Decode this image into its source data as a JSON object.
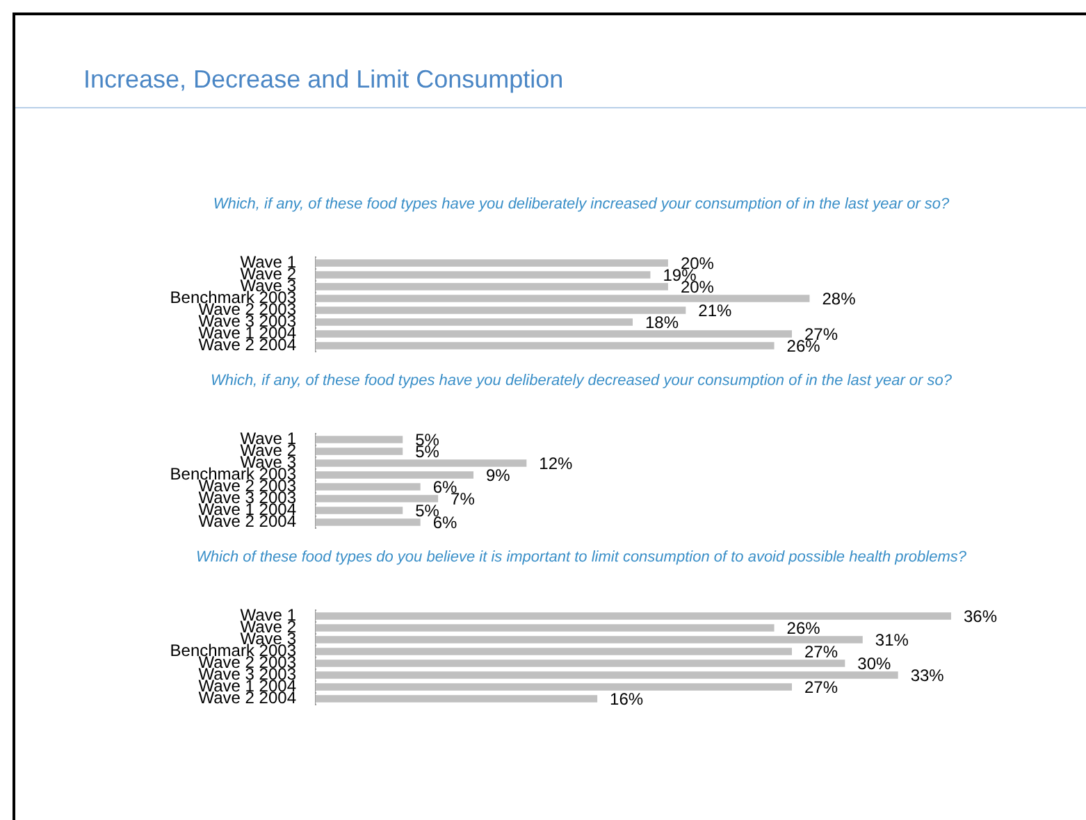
{
  "chart_data": [
    {
      "type": "bar",
      "orientation": "horizontal",
      "title": "Increase, Decrease and Limit Consumption",
      "subtitle": "Which, if any, of these food types have you deliberately increased your consumption of in the last year or so?",
      "categories": [
        "Wave 1",
        "Wave 2",
        "Wave 3",
        "Benchmark 2003",
        "Wave 2 2003",
        "Wave 3 2003",
        "Wave 1 2004",
        "Wave 2 2004"
      ],
      "values": [
        20,
        19,
        20,
        28,
        21,
        18,
        27,
        26
      ],
      "value_labels": [
        "20%",
        "19%",
        "20%",
        "28%",
        "21%",
        "18%",
        "27%",
        "26%"
      ],
      "color": "#c0c0c0"
    },
    {
      "type": "bar",
      "orientation": "horizontal",
      "subtitle": "Which, if any, of these food types have you deliberately decreased your consumption of in the last year or so?",
      "categories": [
        "Wave 1",
        "Wave 2",
        "Wave 3",
        "Benchmark 2003",
        "Wave 2 2003",
        "Wave 3 2003",
        "Wave 1 2004",
        "Wave 2 2004"
      ],
      "values": [
        5,
        5,
        12,
        9,
        6,
        7,
        5,
        6
      ],
      "value_labels": [
        "5%",
        "5%",
        "12%",
        "9%",
        "6%",
        "7%",
        "5%",
        "6%"
      ],
      "color": "#c0c0c0"
    },
    {
      "type": "bar",
      "orientation": "horizontal",
      "subtitle": "Which of these food types do you believe it is important to limit consumption of to avoid possible health problems?",
      "categories": [
        "Wave 1",
        "Wave 2",
        "Wave 3",
        "Benchmark 2003",
        "Wave 2 2003",
        "Wave 3 2003",
        "Wave 1 2004",
        "Wave 2 2004"
      ],
      "values": [
        36,
        26,
        31,
        27,
        30,
        33,
        27,
        16
      ],
      "value_labels": [
        "36%",
        "26%",
        "31%",
        "27%",
        "30%",
        "33%",
        "27%",
        "16%"
      ],
      "color": "#c0c0c0"
    }
  ]
}
